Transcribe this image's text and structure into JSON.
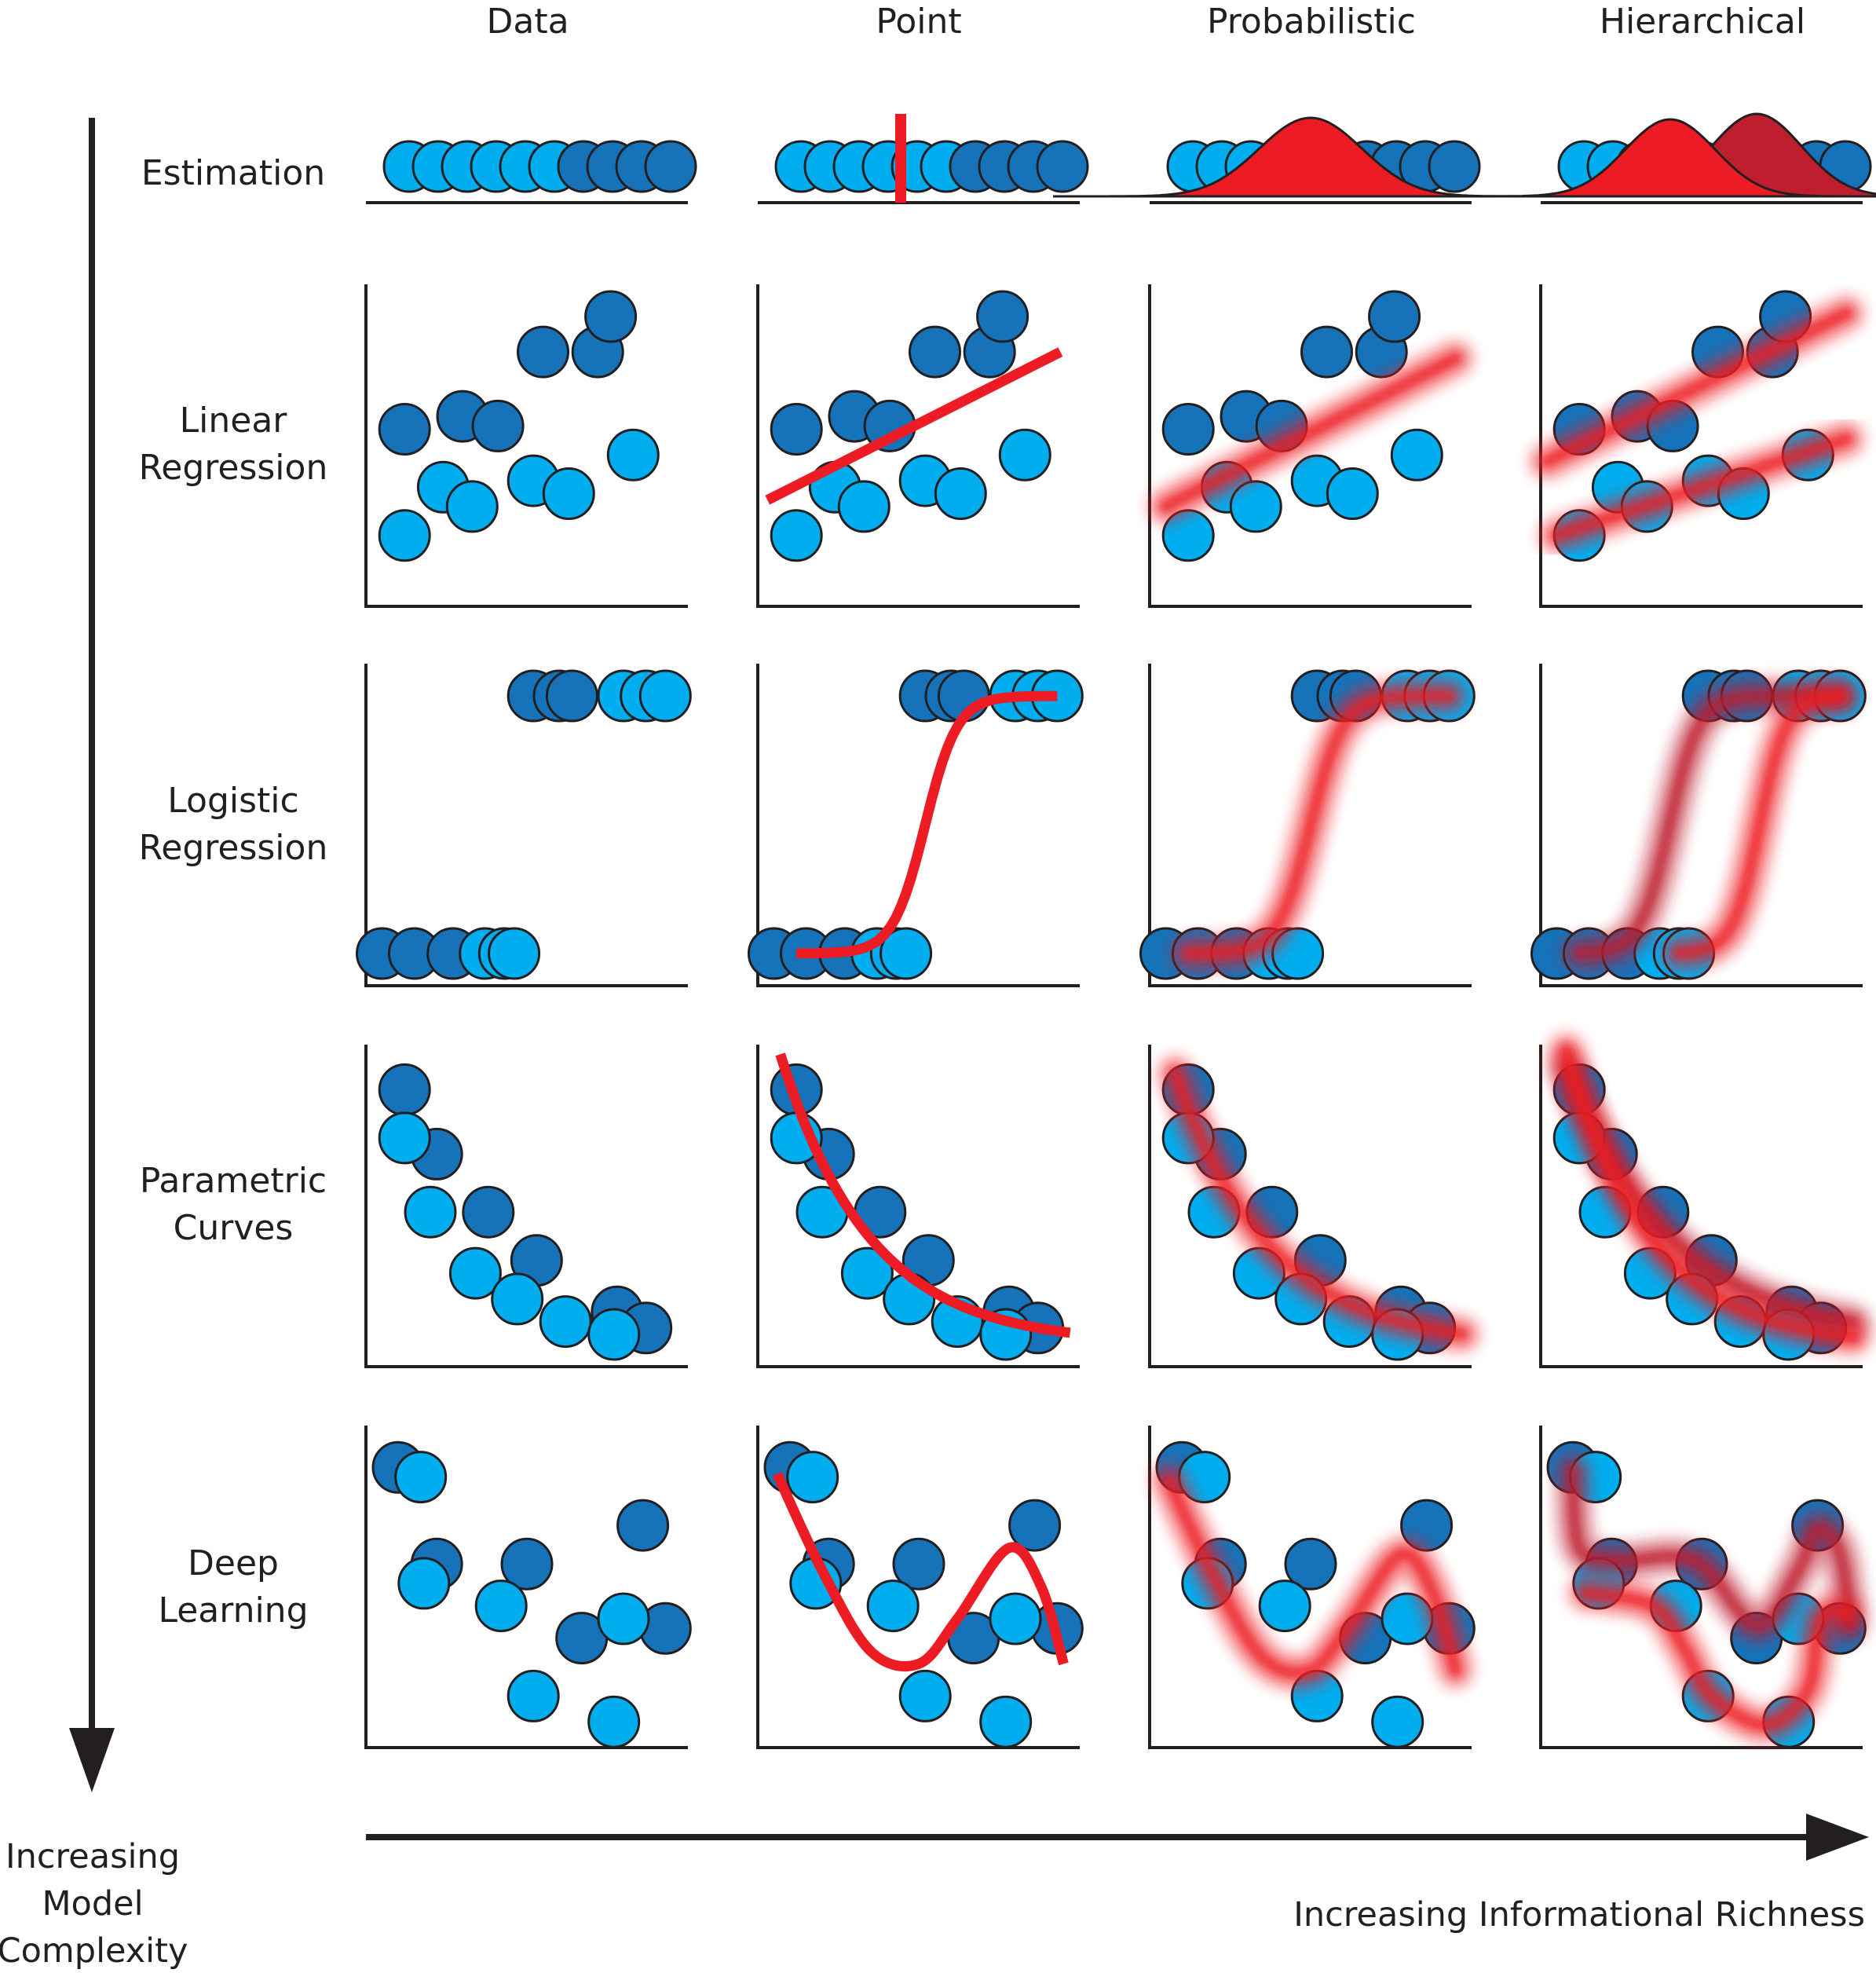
{
  "columns": [
    "Data",
    "Point",
    "Probabilistic",
    "Hierarchical"
  ],
  "rows": [
    {
      "label_lines": [
        "Estimation"
      ]
    },
    {
      "label_lines": [
        "Linear",
        "Regression"
      ]
    },
    {
      "label_lines": [
        "Logistic",
        "Regression"
      ]
    },
    {
      "label_lines": [
        "Parametric",
        "Curves"
      ]
    },
    {
      "label_lines": [
        "Deep",
        "Learning"
      ]
    }
  ],
  "axis_labels": {
    "vertical_lines": [
      "Increasing",
      "Model",
      "Complexity"
    ],
    "horizontal": "Increasing Informational Richness"
  },
  "colors": {
    "point_light": "#00aeef",
    "point_dark": "#1673b9",
    "fit_red": "#ed1c24",
    "fit_dark_red": "#be1e2d",
    "ink": "#231f20"
  },
  "marks": {
    "estimation": {
      "light": [
        0,
        1,
        2,
        3,
        4,
        5
      ],
      "dark": [
        6,
        7,
        8,
        9
      ]
    },
    "linear": {
      "dark": [
        [
          0.12,
          0.55
        ],
        [
          0.3,
          0.59
        ],
        [
          0.41,
          0.56
        ],
        [
          0.55,
          0.79
        ],
        [
          0.72,
          0.79
        ],
        [
          0.76,
          0.9
        ]
      ],
      "light": [
        [
          0.12,
          0.22
        ],
        [
          0.24,
          0.37
        ],
        [
          0.33,
          0.31
        ],
        [
          0.52,
          0.39
        ],
        [
          0.63,
          0.35
        ],
        [
          0.83,
          0.47
        ]
      ],
      "groups": [
        {
          "members": [
            [
              0.12,
              0.55
            ],
            [
              0.3,
              0.59
            ],
            [
              0.41,
              0.56
            ],
            [
              0.55,
              0.79
            ],
            [
              0.72,
              0.79
            ],
            [
              0.76,
              0.9
            ]
          ]
        },
        {
          "members": [
            [
              0.12,
              0.22
            ],
            [
              0.24,
              0.37
            ],
            [
              0.33,
              0.31
            ],
            [
              0.52,
              0.39
            ],
            [
              0.63,
              0.35
            ],
            [
              0.83,
              0.47
            ]
          ]
        }
      ]
    },
    "logistic": {
      "dark": [
        [
          0.05,
          0.1
        ],
        [
          0.15,
          0.1
        ],
        [
          0.27,
          0.1
        ],
        [
          0.52,
          0.9
        ],
        [
          0.6,
          0.9
        ],
        [
          0.64,
          0.9
        ]
      ],
      "light": [
        [
          0.37,
          0.1
        ],
        [
          0.43,
          0.1
        ],
        [
          0.46,
          0.1
        ],
        [
          0.8,
          0.9
        ],
        [
          0.87,
          0.9
        ],
        [
          0.93,
          0.9
        ]
      ],
      "group_a": [
        [
          0.05,
          0.1
        ],
        [
          0.15,
          0.1
        ],
        [
          0.27,
          0.1
        ],
        [
          0.37,
          0.1
        ],
        [
          0.52,
          0.9
        ],
        [
          0.6,
          0.9
        ],
        [
          0.64,
          0.9
        ]
      ],
      "group_b": [
        [
          0.43,
          0.1
        ],
        [
          0.46,
          0.1
        ],
        [
          0.8,
          0.9
        ],
        [
          0.87,
          0.9
        ],
        [
          0.93,
          0.9
        ]
      ]
    },
    "parametric": {
      "dark": [
        [
          0.12,
          0.86
        ],
        [
          0.22,
          0.66
        ],
        [
          0.38,
          0.48
        ],
        [
          0.53,
          0.33
        ],
        [
          0.78,
          0.17
        ],
        [
          0.87,
          0.12
        ]
      ],
      "light": [
        [
          0.12,
          0.71
        ],
        [
          0.2,
          0.48
        ],
        [
          0.34,
          0.29
        ],
        [
          0.47,
          0.21
        ],
        [
          0.62,
          0.14
        ],
        [
          0.77,
          0.1
        ]
      ],
      "group_a": [
        [
          0.12,
          0.86
        ],
        [
          0.12,
          0.71
        ],
        [
          0.22,
          0.66
        ],
        [
          0.2,
          0.48
        ],
        [
          0.38,
          0.48
        ],
        [
          0.53,
          0.33
        ],
        [
          0.78,
          0.17
        ],
        [
          0.87,
          0.12
        ]
      ],
      "group_b": [
        [
          0.34,
          0.29
        ],
        [
          0.47,
          0.21
        ],
        [
          0.62,
          0.14
        ],
        [
          0.77,
          0.1
        ]
      ]
    },
    "deep": {
      "dark": [
        [
          0.1,
          0.87
        ],
        [
          0.22,
          0.57
        ],
        [
          0.5,
          0.57
        ],
        [
          0.67,
          0.34
        ],
        [
          0.86,
          0.69
        ],
        [
          0.93,
          0.37
        ]
      ],
      "light": [
        [
          0.17,
          0.84
        ],
        [
          0.18,
          0.51
        ],
        [
          0.42,
          0.44
        ],
        [
          0.52,
          0.16
        ],
        [
          0.8,
          0.4
        ],
        [
          0.77,
          0.08
        ]
      ],
      "group_a": [
        [
          0.1,
          0.87
        ],
        [
          0.17,
          0.84
        ],
        [
          0.22,
          0.57
        ],
        [
          0.18,
          0.51
        ],
        [
          0.5,
          0.57
        ],
        [
          0.67,
          0.34
        ],
        [
          0.86,
          0.69
        ],
        [
          0.93,
          0.37
        ]
      ],
      "group_b": [
        [
          0.42,
          0.44
        ],
        [
          0.52,
          0.16
        ],
        [
          0.8,
          0.4
        ],
        [
          0.77,
          0.08
        ]
      ]
    }
  }
}
